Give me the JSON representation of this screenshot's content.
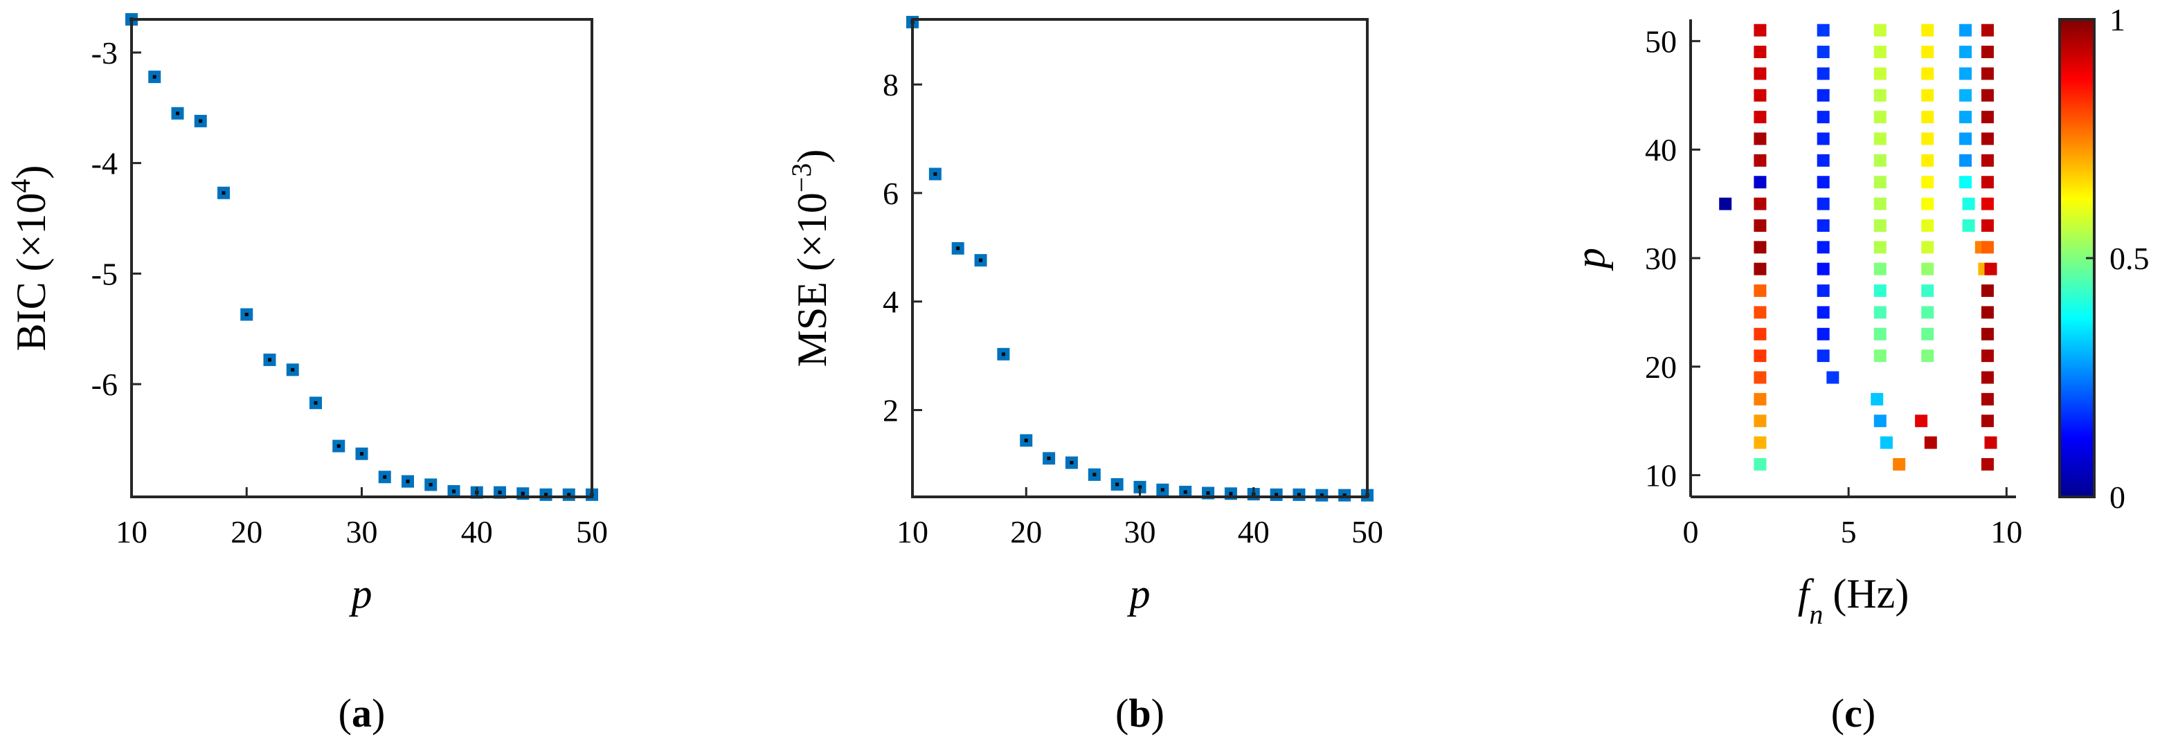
{
  "chart_data": [
    {
      "type": "scatter",
      "panel": "(a)",
      "panel_letter": "a",
      "ylabel_main": "BIC (×10",
      "ylabel_exp": "4",
      "ylabel_close": ")",
      "xlabel": "p",
      "xlim": [
        10,
        50
      ],
      "ylim": [
        -7.02,
        -2.7
      ],
      "xticks": [
        10,
        20,
        30,
        40,
        50
      ],
      "yticks": [
        -3,
        -4,
        -5,
        -6
      ],
      "ytick_labels": [
        "-3",
        "-4",
        "-5",
        "-6"
      ],
      "marker_color": "#0072BD",
      "x": [
        10,
        12,
        14,
        16,
        18,
        20,
        22,
        24,
        26,
        28,
        30,
        32,
        34,
        36,
        38,
        40,
        42,
        44,
        46,
        48,
        50
      ],
      "y": [
        -2.7,
        -3.22,
        -3.55,
        -3.62,
        -4.27,
        -5.37,
        -5.78,
        -5.87,
        -6.17,
        -6.56,
        -6.63,
        -6.84,
        -6.88,
        -6.91,
        -6.97,
        -6.98,
        -6.98,
        -6.99,
        -7.0,
        -7.0,
        -7.0
      ]
    },
    {
      "type": "scatter",
      "panel": "(b)",
      "panel_letter": "b",
      "ylabel_main": "MSE (×10",
      "ylabel_exp": "−3",
      "ylabel_close": ")",
      "xlabel": "p",
      "xlim": [
        10,
        50
      ],
      "ylim": [
        0.4,
        9.2
      ],
      "xticks": [
        10,
        20,
        30,
        40,
        50
      ],
      "yticks": [
        2,
        4,
        6,
        8
      ],
      "ytick_labels": [
        "2",
        "4",
        "6",
        "8"
      ],
      "marker_color": "#0072BD",
      "x": [
        10,
        12,
        14,
        16,
        18,
        20,
        22,
        24,
        26,
        28,
        30,
        32,
        34,
        36,
        38,
        40,
        42,
        44,
        46,
        48,
        50
      ],
      "y": [
        9.15,
        6.35,
        4.98,
        4.76,
        3.03,
        1.44,
        1.11,
        1.03,
        0.81,
        0.63,
        0.58,
        0.53,
        0.49,
        0.47,
        0.46,
        0.45,
        0.44,
        0.44,
        0.43,
        0.43,
        0.43
      ]
    },
    {
      "type": "scatter",
      "panel": "(c)",
      "panel_letter": "c",
      "xlabel_main": "f",
      "xlabel_sub": "n",
      "xlabel_unit": "(Hz)",
      "ylabel": "p",
      "xlim": [
        0,
        10.3
      ],
      "ylim": [
        8,
        52
      ],
      "xticks": [
        0,
        5,
        10
      ],
      "yticks": [
        10,
        20,
        30,
        40,
        50
      ],
      "colorbar": {
        "min": 0,
        "max": 1,
        "ticks": [
          0,
          0.5,
          1
        ],
        "tick_labels": [
          "0",
          "0.5",
          "1"
        ],
        "colormap": "jet"
      },
      "points": [
        {
          "f": 1.1,
          "p": 35,
          "c": 0.03
        },
        {
          "f": 2.2,
          "p": 11,
          "c": 0.45
        },
        {
          "f": 2.2,
          "p": 13,
          "c": 0.7
        },
        {
          "f": 2.2,
          "p": 15,
          "c": 0.72
        },
        {
          "f": 2.2,
          "p": 17,
          "c": 0.75
        },
        {
          "f": 2.2,
          "p": 19,
          "c": 0.8
        },
        {
          "f": 2.2,
          "p": 21,
          "c": 0.82
        },
        {
          "f": 2.2,
          "p": 23,
          "c": 0.82
        },
        {
          "f": 2.2,
          "p": 25,
          "c": 0.8
        },
        {
          "f": 2.2,
          "p": 27,
          "c": 0.78
        },
        {
          "f": 2.2,
          "p": 29,
          "c": 0.97
        },
        {
          "f": 2.2,
          "p": 31,
          "c": 0.97
        },
        {
          "f": 2.2,
          "p": 33,
          "c": 0.96
        },
        {
          "f": 2.2,
          "p": 35,
          "c": 0.95
        },
        {
          "f": 2.2,
          "p": 37,
          "c": 0.08
        },
        {
          "f": 2.2,
          "p": 39,
          "c": 0.95
        },
        {
          "f": 2.2,
          "p": 41,
          "c": 0.96
        },
        {
          "f": 2.2,
          "p": 43,
          "c": 0.92
        },
        {
          "f": 2.2,
          "p": 45,
          "c": 0.92
        },
        {
          "f": 2.2,
          "p": 47,
          "c": 0.92
        },
        {
          "f": 2.2,
          "p": 49,
          "c": 0.92
        },
        {
          "f": 2.2,
          "p": 51,
          "c": 0.92
        },
        {
          "f": 4.5,
          "p": 19,
          "c": 0.18
        },
        {
          "f": 4.2,
          "p": 21,
          "c": 0.17
        },
        {
          "f": 4.2,
          "p": 23,
          "c": 0.15
        },
        {
          "f": 4.2,
          "p": 25,
          "c": 0.15
        },
        {
          "f": 4.2,
          "p": 27,
          "c": 0.16
        },
        {
          "f": 4.2,
          "p": 29,
          "c": 0.14
        },
        {
          "f": 4.2,
          "p": 31,
          "c": 0.15
        },
        {
          "f": 4.2,
          "p": 33,
          "c": 0.16
        },
        {
          "f": 4.2,
          "p": 35,
          "c": 0.16
        },
        {
          "f": 4.2,
          "p": 37,
          "c": 0.15
        },
        {
          "f": 4.2,
          "p": 39,
          "c": 0.16
        },
        {
          "f": 4.2,
          "p": 41,
          "c": 0.16
        },
        {
          "f": 4.2,
          "p": 43,
          "c": 0.16
        },
        {
          "f": 4.2,
          "p": 45,
          "c": 0.16
        },
        {
          "f": 4.2,
          "p": 47,
          "c": 0.17
        },
        {
          "f": 4.2,
          "p": 49,
          "c": 0.18
        },
        {
          "f": 4.2,
          "p": 51,
          "c": 0.18
        },
        {
          "f": 6.2,
          "p": 13,
          "c": 0.32
        },
        {
          "f": 6.0,
          "p": 15,
          "c": 0.28
        },
        {
          "f": 5.9,
          "p": 17,
          "c": 0.32
        },
        {
          "f": 6.0,
          "p": 21,
          "c": 0.5
        },
        {
          "f": 6.0,
          "p": 23,
          "c": 0.48
        },
        {
          "f": 6.0,
          "p": 25,
          "c": 0.45
        },
        {
          "f": 6.0,
          "p": 27,
          "c": 0.42
        },
        {
          "f": 6.0,
          "p": 29,
          "c": 0.5
        },
        {
          "f": 6.0,
          "p": 31,
          "c": 0.55
        },
        {
          "f": 6.0,
          "p": 33,
          "c": 0.55
        },
        {
          "f": 6.0,
          "p": 35,
          "c": 0.55
        },
        {
          "f": 6.0,
          "p": 37,
          "c": 0.55
        },
        {
          "f": 6.0,
          "p": 39,
          "c": 0.55
        },
        {
          "f": 6.0,
          "p": 41,
          "c": 0.56
        },
        {
          "f": 6.0,
          "p": 43,
          "c": 0.56
        },
        {
          "f": 6.0,
          "p": 45,
          "c": 0.56
        },
        {
          "f": 6.0,
          "p": 47,
          "c": 0.57
        },
        {
          "f": 6.0,
          "p": 49,
          "c": 0.57
        },
        {
          "f": 6.0,
          "p": 51,
          "c": 0.57
        },
        {
          "f": 6.6,
          "p": 11,
          "c": 0.75
        },
        {
          "f": 7.3,
          "p": 15,
          "c": 0.9
        },
        {
          "f": 7.6,
          "p": 13,
          "c": 0.95
        },
        {
          "f": 7.5,
          "p": 21,
          "c": 0.5
        },
        {
          "f": 7.5,
          "p": 23,
          "c": 0.48
        },
        {
          "f": 7.5,
          "p": 25,
          "c": 0.46
        },
        {
          "f": 7.5,
          "p": 27,
          "c": 0.43
        },
        {
          "f": 7.5,
          "p": 29,
          "c": 0.52
        },
        {
          "f": 7.5,
          "p": 31,
          "c": 0.58
        },
        {
          "f": 7.5,
          "p": 33,
          "c": 0.6
        },
        {
          "f": 7.5,
          "p": 35,
          "c": 0.62
        },
        {
          "f": 7.5,
          "p": 37,
          "c": 0.63
        },
        {
          "f": 7.5,
          "p": 39,
          "c": 0.64
        },
        {
          "f": 7.5,
          "p": 41,
          "c": 0.64
        },
        {
          "f": 7.5,
          "p": 43,
          "c": 0.64
        },
        {
          "f": 7.5,
          "p": 45,
          "c": 0.64
        },
        {
          "f": 7.5,
          "p": 47,
          "c": 0.64
        },
        {
          "f": 7.5,
          "p": 49,
          "c": 0.64
        },
        {
          "f": 7.5,
          "p": 51,
          "c": 0.64
        },
        {
          "f": 8.8,
          "p": 33,
          "c": 0.42
        },
        {
          "f": 8.8,
          "p": 35,
          "c": 0.4
        },
        {
          "f": 8.7,
          "p": 37,
          "c": 0.38
        },
        {
          "f": 8.7,
          "p": 39,
          "c": 0.27
        },
        {
          "f": 8.7,
          "p": 41,
          "c": 0.28
        },
        {
          "f": 8.7,
          "p": 43,
          "c": 0.29
        },
        {
          "f": 8.7,
          "p": 45,
          "c": 0.3
        },
        {
          "f": 8.7,
          "p": 47,
          "c": 0.29
        },
        {
          "f": 8.7,
          "p": 49,
          "c": 0.29
        },
        {
          "f": 8.7,
          "p": 51,
          "c": 0.28
        },
        {
          "f": 9.3,
          "p": 29,
          "c": 0.7
        },
        {
          "f": 9.2,
          "p": 31,
          "c": 0.75
        },
        {
          "f": 9.4,
          "p": 31,
          "c": 0.78
        },
        {
          "f": 9.5,
          "p": 29,
          "c": 0.92
        },
        {
          "f": 9.4,
          "p": 11,
          "c": 0.95
        },
        {
          "f": 9.5,
          "p": 13,
          "c": 0.92
        },
        {
          "f": 9.4,
          "p": 15,
          "c": 0.96
        },
        {
          "f": 9.4,
          "p": 17,
          "c": 0.96
        },
        {
          "f": 9.4,
          "p": 19,
          "c": 0.96
        },
        {
          "f": 9.4,
          "p": 21,
          "c": 0.96
        },
        {
          "f": 9.4,
          "p": 23,
          "c": 0.97
        },
        {
          "f": 9.4,
          "p": 25,
          "c": 0.97
        },
        {
          "f": 9.4,
          "p": 27,
          "c": 0.97
        },
        {
          "f": 9.4,
          "p": 33,
          "c": 0.92
        },
        {
          "f": 9.4,
          "p": 35,
          "c": 0.9
        },
        {
          "f": 9.4,
          "p": 37,
          "c": 0.93
        },
        {
          "f": 9.4,
          "p": 39,
          "c": 0.95
        },
        {
          "f": 9.4,
          "p": 41,
          "c": 0.96
        },
        {
          "f": 9.4,
          "p": 43,
          "c": 0.96
        },
        {
          "f": 9.4,
          "p": 45,
          "c": 0.96
        },
        {
          "f": 9.4,
          "p": 47,
          "c": 0.96
        },
        {
          "f": 9.4,
          "p": 49,
          "c": 0.96
        },
        {
          "f": 9.4,
          "p": 51,
          "c": 0.95
        }
      ]
    }
  ]
}
